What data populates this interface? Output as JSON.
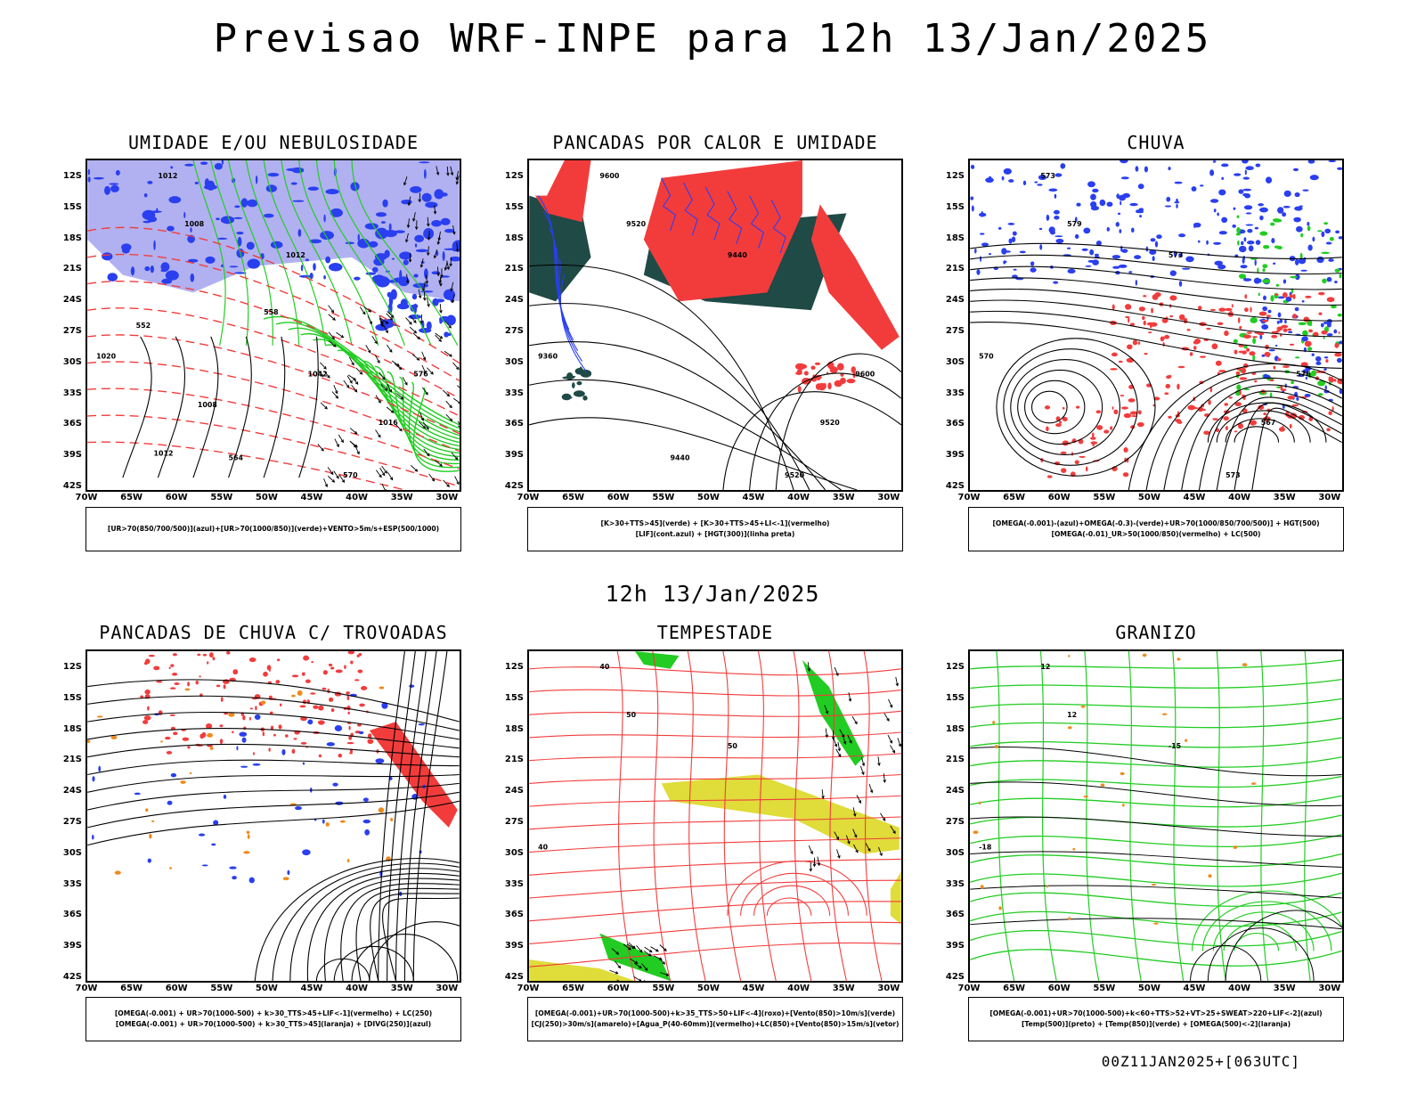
{
  "header": {
    "title": "Previsao WRF-INPE  para 12h 13/Jan/2025",
    "mid_title": "12h 13/Jan/2025",
    "run_info": "00Z11JAN2025+[063UTC]"
  },
  "axes": {
    "lat_labels": [
      "12S",
      "15S",
      "18S",
      "21S",
      "24S",
      "27S",
      "30S",
      "33S",
      "36S",
      "39S",
      "42S"
    ],
    "lon_labels": [
      "70W",
      "65W",
      "60W",
      "55W",
      "50W",
      "45W",
      "40W",
      "35W",
      "30W"
    ]
  },
  "colors": {
    "blue": "#2a3ff0",
    "light_blue": "#a8a8f0",
    "green": "#22cc22",
    "red": "#f23c3c",
    "dark_teal": "#1f4a46",
    "yellow": "#e0dc3a",
    "orange": "#f08a1c"
  },
  "panels": [
    {
      "title": "UMIDADE E/OU NEBULOSIDADE",
      "legend": [
        "[UR>70(850/700/500)](azul)+[UR>70(1000/850)](verde)+VENTO>5m/s+ESP(500/1000)"
      ],
      "contour_labels": [
        "1012",
        "1008",
        "1012",
        "1020",
        "1016",
        "576",
        "570",
        "564",
        "558",
        "552",
        "1042",
        "1008",
        "1012"
      ]
    },
    {
      "title": "PANCADAS POR CALOR E UMIDADE",
      "legend": [
        "[K>30+TTS>45](verde) + [K>30+TTS>45+LI<-1](vermelho)",
        "[LIF](cont.azul) + [HGT(300)](linha preta)"
      ],
      "contour_labels": [
        "9600",
        "9520",
        "9440",
        "9360",
        "9520",
        "9600",
        "9520",
        "9440"
      ]
    },
    {
      "title": "CHUVA",
      "legend": [
        "[OMEGA(-0.001)-(azul)+OMEGA(-0.3)-(verde)+UR>70(1000/850/700/500)] + HGT(500)",
        "[OMEGA(-0.01)_UR>50(1000/850)(vermelho) + LC(500)"
      ],
      "contour_labels": [
        "573",
        "579",
        "573",
        "570",
        "567",
        "576",
        "573"
      ]
    },
    {
      "title": "PANCADAS DE CHUVA C/ TROVOADAS",
      "legend": [
        "[OMEGA(-0.001) + UR>70(1000-500) + k>30_TTS>45+LIF<-1](vermelho) + LC(250)",
        "[OMEGA(-0.001) + UR>70(1000-500) + k>30_TTS>45](laranja) + [DIVG(250)](azul)"
      ],
      "contour_labels": []
    },
    {
      "title": "TEMPESTADE",
      "legend": [
        "[OMEGA(-0.001)+UR>70(1000-500)+k>35_TTS>50+LIF<-4](roxo)+[Vento(850)>10m/s](verde)",
        "[CJ(250)>30m/s](amarelo)+[Agua_P(40-60mm)](vermelho)+LC(850)+[Vento(850)>15m/s](vetor)"
      ],
      "contour_labels": [
        "40",
        "50",
        "50",
        "40"
      ]
    },
    {
      "title": "GRANIZO",
      "legend": [
        "[OMEGA(-0.001)+UR>70(1000-500)+k<60+TTS>52+VT>25+SWEAT>220+LIF<-2](azul)",
        "[Temp(500)](preto) + [Temp(850)](verde) + [OMEGA(500)<-2](laranja)"
      ],
      "contour_labels": [
        "12",
        "12",
        "-15",
        "-18"
      ]
    }
  ]
}
